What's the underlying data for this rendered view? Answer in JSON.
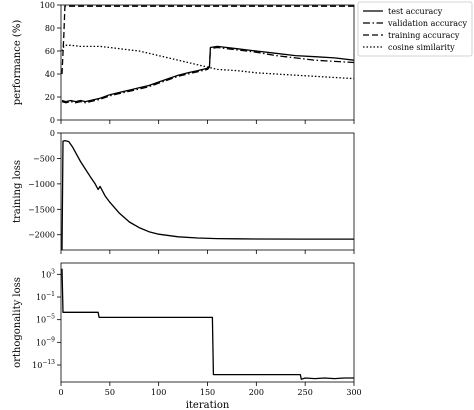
{
  "chart_data": [
    {
      "type": "line",
      "ylabel": "performance (%)",
      "xlim": [
        0,
        300
      ],
      "ylim": [
        0,
        100
      ],
      "yticks": [
        0,
        20,
        40,
        60,
        80,
        100
      ],
      "xticks": [
        0,
        50,
        100,
        150,
        200,
        250,
        300
      ],
      "show_xtick_labels": false,
      "legend_position": "outside-top-right",
      "series": [
        {
          "name": "test accuracy",
          "dash": "solid",
          "x": [
            1,
            5,
            10,
            15,
            20,
            25,
            30,
            40,
            50,
            60,
            70,
            80,
            90,
            100,
            110,
            120,
            130,
            140,
            150,
            152,
            153,
            160,
            170,
            180,
            190,
            200,
            220,
            240,
            260,
            280,
            300
          ],
          "y": [
            17,
            16,
            17,
            16,
            17,
            16,
            17,
            19,
            22,
            24,
            26,
            28,
            30,
            33,
            36,
            39,
            41,
            43,
            45,
            47,
            63,
            64,
            63,
            62,
            61,
            60,
            58,
            56,
            55,
            54,
            52
          ]
        },
        {
          "name": "validation accuracy",
          "dash": "dashdot",
          "x": [
            1,
            5,
            10,
            15,
            20,
            25,
            30,
            40,
            50,
            60,
            70,
            80,
            90,
            100,
            110,
            120,
            130,
            140,
            150,
            152,
            153,
            160,
            170,
            180,
            190,
            200,
            220,
            240,
            260,
            280,
            300
          ],
          "y": [
            16,
            15,
            16,
            15,
            16,
            15,
            16,
            18,
            21,
            23,
            25,
            27,
            29,
            32,
            35,
            38,
            40,
            42,
            44,
            46,
            62,
            63,
            62,
            61,
            60,
            59,
            56,
            54,
            52,
            51,
            50
          ]
        },
        {
          "name": "training accuracy",
          "dash": "dashed",
          "x": [
            1,
            3,
            4,
            300
          ],
          "y": [
            40,
            75,
            99,
            99
          ]
        },
        {
          "name": "cosine similarity",
          "dash": "dotted",
          "x": [
            1,
            3,
            5,
            10,
            20,
            30,
            40,
            50,
            60,
            70,
            80,
            90,
            100,
            110,
            120,
            130,
            140,
            150,
            160,
            180,
            200,
            220,
            240,
            260,
            280,
            300
          ],
          "y": [
            60,
            64,
            65,
            65,
            64,
            64,
            64,
            63,
            62,
            61,
            60,
            58,
            56,
            54,
            52,
            50,
            48,
            46,
            44,
            43,
            41,
            40,
            39,
            38,
            37,
            36
          ]
        }
      ]
    },
    {
      "type": "line",
      "ylabel": "training loss",
      "xlim": [
        0,
        300
      ],
      "ylim": [
        -2300,
        0
      ],
      "yticks": [
        0,
        -500,
        -1000,
        -1500,
        -2000
      ],
      "xticks": [
        0,
        50,
        100,
        150,
        200,
        250,
        300
      ],
      "show_xtick_labels": false,
      "series": [
        {
          "dash": "solid",
          "x": [
            1,
            2,
            4,
            8,
            12,
            16,
            20,
            25,
            30,
            35,
            38,
            40,
            45,
            50,
            60,
            70,
            80,
            90,
            100,
            120,
            140,
            160,
            180,
            200,
            250,
            300
          ],
          "y": [
            -2300,
            -160,
            -150,
            -170,
            -280,
            -420,
            -560,
            -710,
            -860,
            -1000,
            -1110,
            -1050,
            -1230,
            -1360,
            -1580,
            -1750,
            -1860,
            -1940,
            -1990,
            -2040,
            -2065,
            -2075,
            -2080,
            -2083,
            -2085,
            -2085
          ]
        }
      ]
    },
    {
      "type": "line",
      "ylabel": "orthogonality loss",
      "xlabel": "iteration",
      "xlim": [
        0,
        300
      ],
      "yscale": "log",
      "ylim_exp": [
        -16,
        5
      ],
      "yticks_exp": [
        3,
        -1,
        -5,
        -9,
        -13
      ],
      "xticks": [
        0,
        50,
        100,
        150,
        200,
        250,
        300
      ],
      "show_xtick_labels": true,
      "series": [
        {
          "dash": "solid",
          "x": [
            1,
            2,
            3,
            38,
            39,
            155,
            156,
            245,
            246,
            250,
            260,
            270,
            280,
            290,
            300
          ],
          "y_exp": [
            4,
            -3.7,
            -3.7,
            -3.7,
            -4.6,
            -4.6,
            -14.7,
            -14.7,
            -15.5,
            -15.3,
            -15.4,
            -15.3,
            -15.4,
            -15.3,
            -15.3
          ]
        }
      ]
    }
  ]
}
